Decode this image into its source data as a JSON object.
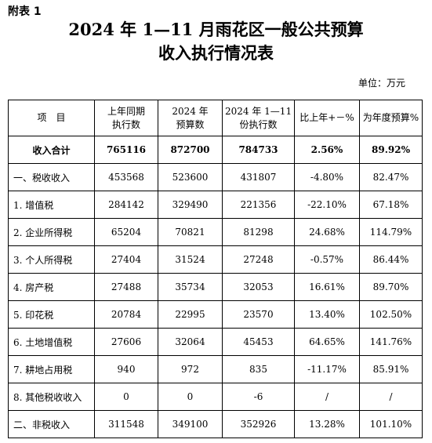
{
  "appendix_label": "附表 1",
  "title_line1": "2024 年 1—11 月雨花区一般公共预算",
  "title_line2": "收入执行情况表",
  "unit": "单位：万元",
  "table": {
    "headers": [
      {
        "line1": "项　目",
        "line2": ""
      },
      {
        "line1": "上年同期",
        "line2": "执行数"
      },
      {
        "line1": "2024 年",
        "line2": "预算数"
      },
      {
        "line1": "2024 年 1—11 月",
        "line2": "份执行数"
      },
      {
        "line1": "比上年+－%",
        "line2": ""
      },
      {
        "line1": "为年度预算%",
        "line2": ""
      }
    ],
    "rows": [
      [
        "收入合计",
        "765116",
        "872700",
        "784733",
        "2.56%",
        "89.92%"
      ],
      [
        "一、税收收入",
        "453568",
        "523600",
        "431807",
        "-4.80%",
        "82.47%"
      ],
      [
        "1. 增值税",
        "284142",
        "329490",
        "221356",
        "-22.10%",
        "67.18%"
      ],
      [
        "2. 企业所得税",
        "65204",
        "70821",
        "81298",
        "24.68%",
        "114.79%"
      ],
      [
        "3. 个人所得税",
        "27404",
        "31524",
        "27248",
        "-0.57%",
        "86.44%"
      ],
      [
        "4. 房产税",
        "27488",
        "35734",
        "32053",
        "16.61%",
        "89.70%"
      ],
      [
        "5. 印花税",
        "20784",
        "22995",
        "23570",
        "13.40%",
        "102.50%"
      ],
      [
        "6. 土地增值税",
        "27606",
        "32064",
        "45453",
        "64.65%",
        "141.76%"
      ],
      [
        "7. 耕地占用税",
        "940",
        "972",
        "835",
        "-11.17%",
        "85.91%"
      ],
      [
        "8. 其他税收收入",
        "0",
        "0",
        "-6",
        "/",
        "/"
      ],
      [
        "二、非税收入",
        "311548",
        "349100",
        "352926",
        "13.28%",
        "101.10%"
      ]
    ]
  }
}
